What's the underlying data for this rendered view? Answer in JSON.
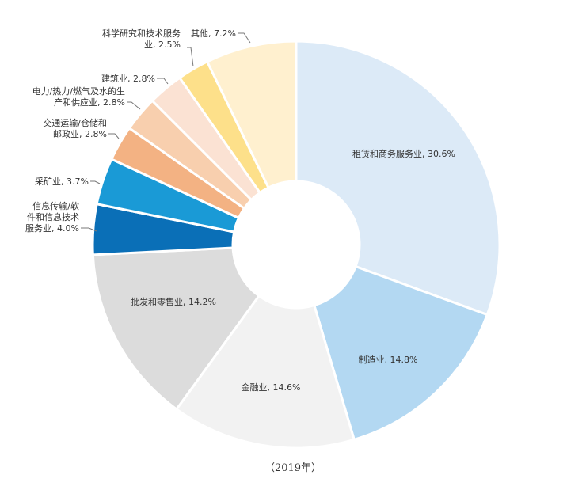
{
  "chart_data": {
    "type": "pie",
    "variant": "donut",
    "caption": "（2019年）",
    "slices": [
      {
        "label_lines": [
          "租赁和商务服务业, 30.6%"
        ],
        "value": 30.6,
        "color": "#dceaf7"
      },
      {
        "label_lines": [
          "制造业, 14.8%"
        ],
        "value": 14.8,
        "color": "#b3d8f2"
      },
      {
        "label_lines": [
          "金融业, 14.6%"
        ],
        "value": 14.6,
        "color": "#f2f2f2"
      },
      {
        "label_lines": [
          "批发和零售业, 14.2%"
        ],
        "value": 14.2,
        "color": "#dcdcdc"
      },
      {
        "label_lines": [
          "信息传输/软",
          "件和信息技术",
          "服务业, 4.0%"
        ],
        "value": 4.0,
        "color": "#0a6fb7"
      },
      {
        "label_lines": [
          "采矿业, 3.7%"
        ],
        "value": 3.7,
        "color": "#1a9ad6"
      },
      {
        "label_lines": [
          "交通运输/仓储和",
          "邮政业, 2.8%"
        ],
        "value": 2.8,
        "color": "#f3b283"
      },
      {
        "label_lines": [
          "电力/热力/燃气及水的生",
          "产和供应业, 2.8%"
        ],
        "value": 2.8,
        "color": "#f8cfae"
      },
      {
        "label_lines": [
          "建筑业, 2.8%"
        ],
        "value": 2.8,
        "color": "#fbe2d3"
      },
      {
        "label_lines": [
          "科学研究和技术服务",
          "业, 2.5%"
        ],
        "value": 2.5,
        "color": "#fde08a"
      },
      {
        "label_lines": [
          "其他, 7.2%"
        ],
        "value": 7.2,
        "color": "#fff0cf"
      }
    ]
  }
}
